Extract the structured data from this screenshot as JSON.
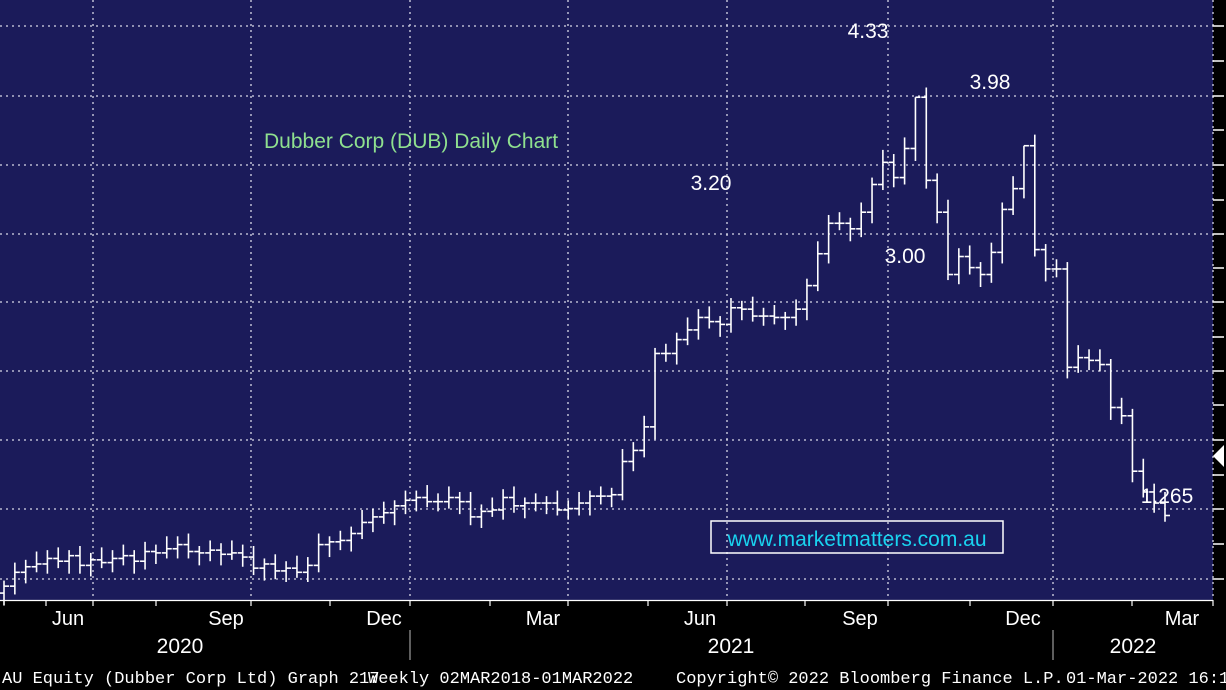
{
  "chart_data": {
    "type": "bar",
    "subtype": "ohlc-weekly",
    "title": "Dubber Corp (DUB) Daily Chart",
    "watermark": "www.marketmatters.com.au",
    "footer": {
      "left": "AU Equity (Dubber Corp Ltd) Graph 217",
      "mid": "Weekly 02MAR2018-01MAR2022",
      "copyright": "Copyright© 2022 Bloomberg Finance L.P.",
      "right": "01-Mar-2022 16:1"
    },
    "x_month_labels": [
      "Jun",
      "Sep",
      "Dec",
      "Mar",
      "Jun",
      "Sep",
      "Dec",
      "Mar"
    ],
    "x_year_labels": [
      "2020",
      "2021",
      "2022"
    ],
    "annotations": [
      "4.33",
      "3.98",
      "3.20",
      "3.00",
      "1.265"
    ],
    "ylim": [
      0.0,
      4.5
    ],
    "grid": true,
    "colors": {
      "background": "#1b1b5a",
      "bars": "#ffffff",
      "grid": "#d8d8e6",
      "title": "#8fe08f",
      "url": "#19d3f0"
    },
    "weekly_close": [
      0.8,
      0.9,
      0.94,
      0.96,
      1.0,
      0.98,
      1.02,
      0.95,
      0.99,
      0.97,
      1.0,
      1.02,
      0.98,
      1.05,
      1.04,
      1.07,
      1.1,
      1.05,
      1.04,
      1.06,
      1.03,
      1.04,
      1.01,
      0.93,
      0.96,
      0.91,
      0.93,
      0.9,
      0.95,
      1.1,
      1.12,
      1.13,
      1.18,
      1.26,
      1.3,
      1.33,
      1.38,
      1.42,
      1.44,
      1.41,
      1.41,
      1.44,
      1.41,
      1.3,
      1.34,
      1.35,
      1.44,
      1.38,
      1.4,
      1.4,
      1.4,
      1.35,
      1.36,
      1.4,
      1.45,
      1.45,
      1.46,
      1.7,
      1.78,
      1.95,
      2.48,
      2.48,
      2.58,
      2.65,
      2.74,
      2.71,
      2.69,
      2.81,
      2.8,
      2.75,
      2.75,
      2.74,
      2.74,
      2.8,
      2.97,
      3.2,
      3.42,
      3.42,
      3.38,
      3.5,
      3.7,
      3.86,
      3.75,
      3.96,
      4.33,
      3.73,
      3.5,
      3.05,
      3.18,
      3.1,
      3.05,
      3.21,
      3.52,
      3.67,
      3.98,
      3.23,
      3.09,
      3.09,
      2.38,
      2.45,
      2.43,
      2.4,
      2.09,
      2.03,
      1.63,
      1.48,
      1.4,
      1.31
    ]
  }
}
